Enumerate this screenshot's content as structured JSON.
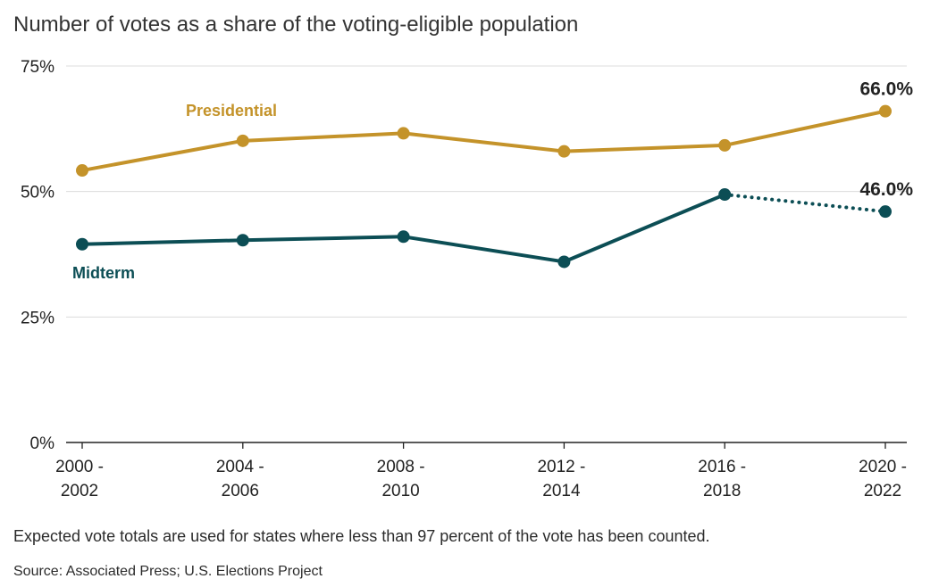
{
  "chart_data": {
    "type": "line",
    "title": "Number of votes as a share of the voting-eligible population",
    "xlabel": "",
    "ylabel": "",
    "ylim": [
      0,
      75
    ],
    "yticks": [
      0,
      25,
      50,
      75
    ],
    "ytick_labels": [
      "0%",
      "25%",
      "50%",
      "75%"
    ],
    "categories": [
      [
        "2000 -",
        "2002"
      ],
      [
        "2004 -",
        "2006"
      ],
      [
        "2008 -",
        "2010"
      ],
      [
        "2012 -",
        "2014"
      ],
      [
        "2016 -",
        "2018"
      ],
      [
        "2020 -",
        "2022"
      ]
    ],
    "series": [
      {
        "name": "Presidential",
        "color": "#c4932a",
        "values": [
          54.2,
          60.1,
          61.6,
          58.0,
          59.2,
          66.0
        ],
        "end_label": "66.0%"
      },
      {
        "name": "Midterm",
        "color": "#0c4e55",
        "values": [
          39.5,
          40.3,
          41.0,
          36.0,
          49.4,
          46.0
        ],
        "end_label": "46.0%",
        "dotted_last_segment": true
      }
    ],
    "grid": true
  },
  "footnote": "Expected vote totals are used for states where less than 97 percent of the vote has been counted.",
  "source": "Source: Associated Press; U.S. Elections Project"
}
